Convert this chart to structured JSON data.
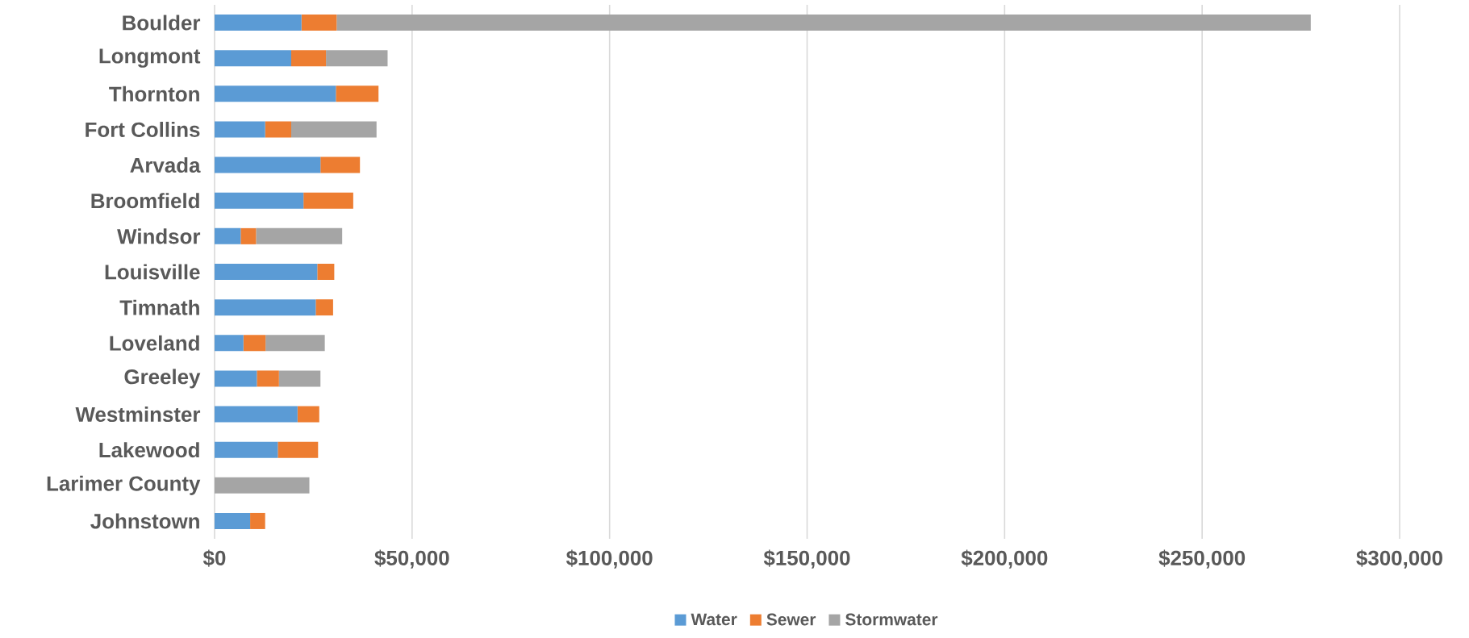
{
  "chart_data": {
    "type": "bar",
    "orientation": "horizontal",
    "stacked": true,
    "categories": [
      "Boulder",
      "Longmont",
      "Thornton",
      "Fort Collins",
      "Arvada",
      "Broomfield",
      "Windsor",
      "Louisville",
      "Timnath",
      "Loveland",
      "Greeley",
      "Westminster",
      "Lakewood",
      "Larimer County",
      "Johnstown"
    ],
    "series": [
      {
        "name": "Water",
        "color": "#5b9bd5",
        "values": [
          22000,
          19400,
          30700,
          12800,
          26800,
          22500,
          6600,
          26000,
          25600,
          7300,
          10700,
          21000,
          16000,
          null,
          9000
        ]
      },
      {
        "name": "Sewer",
        "color": "#ed7d31",
        "values": [
          8900,
          8800,
          10800,
          6600,
          10000,
          12600,
          3900,
          4300,
          4400,
          5600,
          5600,
          5500,
          10200,
          null,
          3800
        ]
      },
      {
        "name": "Stormwater",
        "color": "#a5a5a5",
        "values": [
          246600,
          15600,
          null,
          21600,
          null,
          null,
          21800,
          null,
          null,
          15000,
          10500,
          null,
          null,
          24000,
          null
        ]
      }
    ],
    "xlim": [
      0,
      300000
    ],
    "xticks": [
      {
        "value": 0,
        "label": "$0"
      },
      {
        "value": 50000,
        "label": "$50,000"
      },
      {
        "value": 100000,
        "label": "$100,000"
      },
      {
        "value": 150000,
        "label": "$150,000"
      },
      {
        "value": 200000,
        "label": "$200,000"
      },
      {
        "value": 250000,
        "label": "$250,000"
      },
      {
        "value": 300000,
        "label": "$300,000"
      }
    ],
    "grid": "x",
    "legend": "bottom"
  }
}
